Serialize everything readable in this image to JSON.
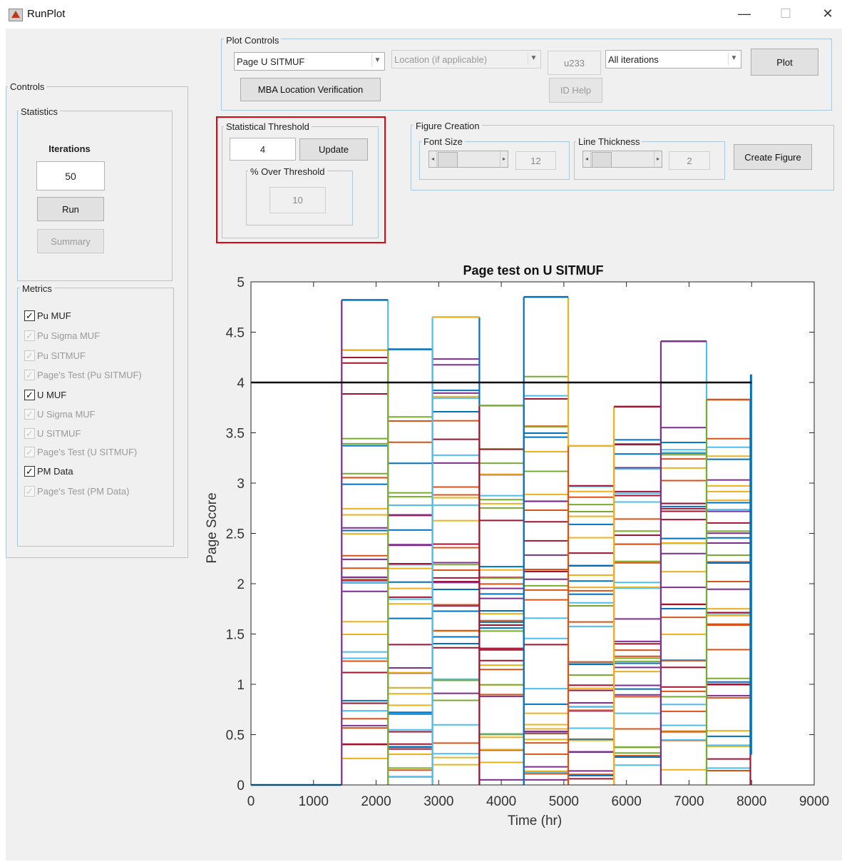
{
  "window": {
    "title": "RunPlot",
    "min_glyph": "—",
    "max_glyph": "☐",
    "close_glyph": "✕"
  },
  "controls": {
    "title": "Controls",
    "statistics": {
      "title": "Statistics",
      "iterations_label": "Iterations",
      "iterations_value": "50",
      "run_label": "Run",
      "summary_label": "Summary"
    },
    "metrics": {
      "title": "Metrics",
      "items": [
        {
          "label": "Pu MUF",
          "checked": true,
          "enabled": true
        },
        {
          "label": "Pu Sigma MUF",
          "checked": true,
          "enabled": false
        },
        {
          "label": "Pu SITMUF",
          "checked": true,
          "enabled": false
        },
        {
          "label": "Page's Test (Pu SITMUF)",
          "checked": true,
          "enabled": false
        },
        {
          "label": "U MUF",
          "checked": true,
          "enabled": true
        },
        {
          "label": "U Sigma MUF",
          "checked": true,
          "enabled": false
        },
        {
          "label": "U SITMUF",
          "checked": true,
          "enabled": false
        },
        {
          "label": "Page's Test (U SITMUF)",
          "checked": true,
          "enabled": false
        },
        {
          "label": "PM Data",
          "checked": true,
          "enabled": true
        },
        {
          "label": "Page's Test (PM Data)",
          "checked": true,
          "enabled": false
        }
      ]
    }
  },
  "plot_controls": {
    "title": "Plot Controls",
    "plot_type": "Page U SITMUF",
    "location": "Location (if applicable)",
    "isotope": "u233",
    "iterations": "All iterations",
    "plot_label": "Plot",
    "mba_label": "MBA Location Verification",
    "id_help_label": "ID Help"
  },
  "threshold": {
    "title": "Statistical Threshold",
    "value": "4",
    "update_label": "Update",
    "over_title": "% Over Threshold",
    "over_value": "10"
  },
  "figure_creation": {
    "title": "Figure Creation",
    "font_size_title": "Font Size",
    "font_size_value": "12",
    "line_thickness_title": "Line Thickness",
    "line_thickness_value": "2",
    "create_label": "Create Figure"
  },
  "chart_data": {
    "type": "line",
    "title": "Page test on U SITMUF",
    "xlabel": "Time (hr)",
    "ylabel": "Page Score",
    "xlim": [
      0,
      9000
    ],
    "ylim": [
      0,
      5
    ],
    "xticks": [
      "0",
      "1000",
      "2000",
      "3000",
      "4000",
      "5000",
      "6000",
      "7000",
      "8000",
      "9000"
    ],
    "yticks": [
      "0",
      "0.5",
      "1",
      "1.5",
      "2",
      "2.5",
      "3",
      "3.5",
      "4",
      "4.5",
      "5"
    ],
    "threshold": 4,
    "grid": false,
    "colors": [
      "#0072bd",
      "#d95319",
      "#edb120",
      "#7e2f8e",
      "#77ac30",
      "#4dbeee",
      "#a2142f"
    ],
    "blocks": [
      {
        "x0": 1450,
        "x1": 2190,
        "max": 4.82,
        "color": "#0072bd"
      },
      {
        "x0": 2190,
        "x1": 2900,
        "max": 4.33,
        "color": "#0072bd"
      },
      {
        "x0": 2900,
        "x1": 3650,
        "max": 4.65,
        "color": "#edb120"
      },
      {
        "x0": 3650,
        "x1": 4360,
        "max": 3.77,
        "color": "#77ac30"
      },
      {
        "x0": 4360,
        "x1": 5070,
        "max": 4.85,
        "color": "#0072bd"
      },
      {
        "x0": 5070,
        "x1": 5800,
        "max": 3.37,
        "color": "#edb120"
      },
      {
        "x0": 5800,
        "x1": 6550,
        "max": 3.76,
        "color": "#a2142f"
      },
      {
        "x0": 6550,
        "x1": 7280,
        "max": 4.41,
        "color": "#7e2f8e"
      },
      {
        "x0": 7280,
        "x1": 7980,
        "max": 3.83,
        "color": "#d95319"
      }
    ]
  }
}
